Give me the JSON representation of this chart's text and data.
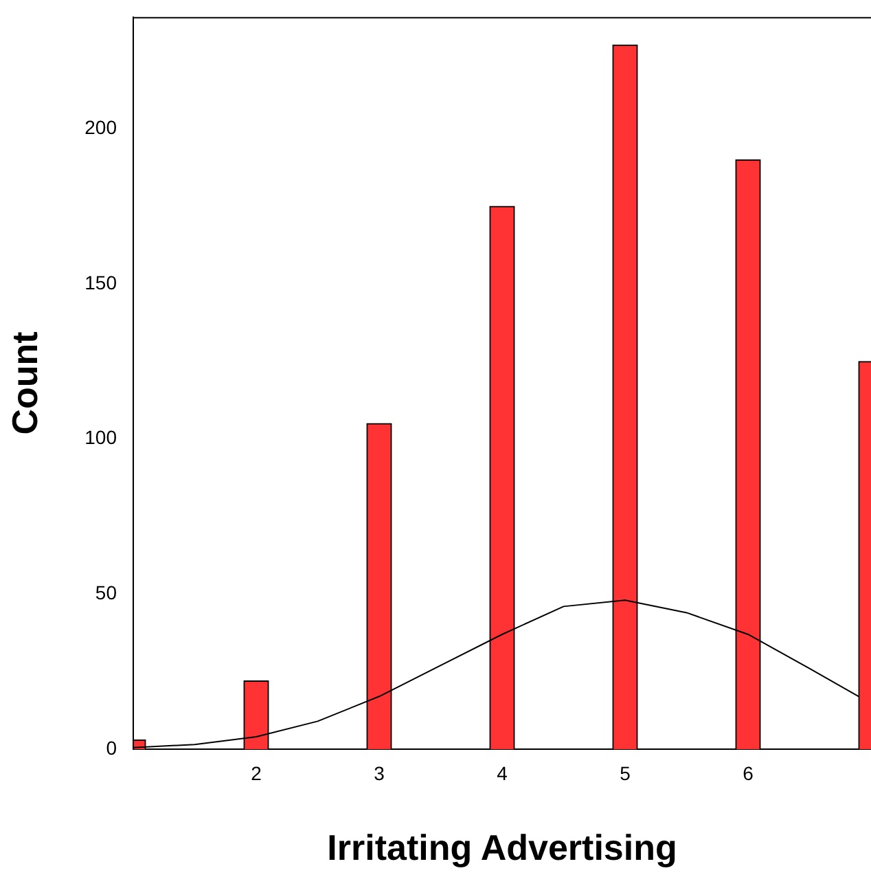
{
  "chart_data": {
    "type": "bar",
    "xlabel": "Irritating Advertising",
    "ylabel": "Count",
    "series": [
      {
        "color": "#ff3333",
        "x": [
          1,
          2,
          3,
          4,
          5,
          6,
          7
        ],
        "values": [
          3,
          22,
          105,
          175,
          227,
          190,
          125
        ]
      },
      {
        "type": "line",
        "color": "#000000",
        "x": [
          1,
          1.5,
          2,
          2.5,
          3,
          3.5,
          4,
          4.5,
          5,
          5.5,
          6,
          6.5,
          6.9
        ],
        "values": [
          0.5,
          1.5,
          4,
          9,
          17,
          27,
          37,
          46,
          48,
          44,
          37,
          26,
          17
        ]
      }
    ],
    "xlim": [
      1,
      7
    ],
    "xticks": [
      2,
      3,
      4,
      5,
      6
    ],
    "ylim": [
      0,
      236
    ],
    "yticks": [
      0,
      50,
      100,
      150,
      200
    ],
    "marker": "none"
  }
}
